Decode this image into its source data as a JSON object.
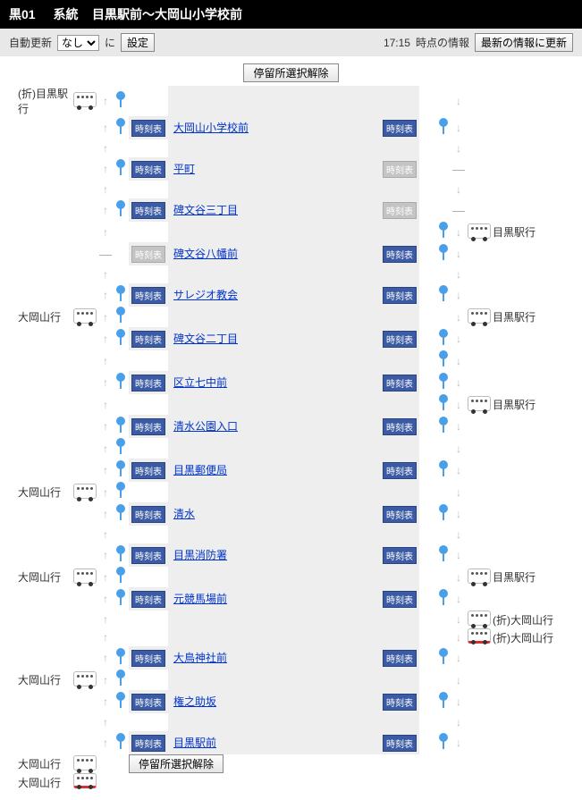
{
  "header": {
    "route_id": "黒01",
    "route_label": "系統",
    "route_name": "目黒駅前～大岡山小学校前"
  },
  "controls": {
    "auto_update_label": "自動更新",
    "auto_update_value": "なし",
    "ni_label": "に",
    "set_button": "設定",
    "time": "17:15",
    "time_info_label": "時点の情報",
    "refresh_button": "最新の情報に更新"
  },
  "clear_selection_button": "停留所選択解除",
  "timetable_label": "時刻表",
  "stops": [
    {
      "name": "大岡山小学校前",
      "tt_left": true,
      "tt_right": true,
      "stop_left": true,
      "stop_right": true,
      "left_dash": false,
      "right_term": false
    },
    {
      "name": "平町",
      "tt_left": true,
      "tt_right": false,
      "stop_left": true,
      "stop_right": false,
      "left_dash": false,
      "right_term": true
    },
    {
      "name": "碑文谷三丁目",
      "tt_left": true,
      "tt_right": false,
      "stop_left": true,
      "stop_right": false,
      "left_dash": false,
      "right_term": true
    },
    {
      "name": "碑文谷八幡前",
      "tt_left": false,
      "tt_right": true,
      "stop_left": false,
      "stop_right": true,
      "left_dash": true,
      "right_term": false
    },
    {
      "name": "サレジオ教会",
      "tt_left": true,
      "tt_right": true,
      "stop_left": true,
      "stop_right": true,
      "left_dash": false,
      "right_term": false
    },
    {
      "name": "碑文谷二丁目",
      "tt_left": true,
      "tt_right": true,
      "stop_left": true,
      "stop_right": true,
      "left_dash": false,
      "right_term": false
    },
    {
      "name": "区立七中前",
      "tt_left": true,
      "tt_right": true,
      "stop_left": true,
      "stop_right": true,
      "left_dash": false,
      "right_term": false
    },
    {
      "name": "清水公園入口",
      "tt_left": true,
      "tt_right": true,
      "stop_left": true,
      "stop_right": true,
      "left_dash": false,
      "right_term": false
    },
    {
      "name": "目黒郵便局",
      "tt_left": true,
      "tt_right": true,
      "stop_left": true,
      "stop_right": true,
      "left_dash": false,
      "right_term": false
    },
    {
      "name": "清水",
      "tt_left": true,
      "tt_right": true,
      "stop_left": true,
      "stop_right": true,
      "left_dash": false,
      "right_term": false
    },
    {
      "name": "目黒消防署",
      "tt_left": true,
      "tt_right": true,
      "stop_left": true,
      "stop_right": true,
      "left_dash": false,
      "right_term": false
    },
    {
      "name": "元競馬場前",
      "tt_left": true,
      "tt_right": true,
      "stop_left": true,
      "stop_right": true,
      "left_dash": false,
      "right_term": false
    },
    {
      "name": "大鳥神社前",
      "tt_left": true,
      "tt_right": true,
      "stop_left": true,
      "stop_right": true,
      "left_dash": false,
      "right_term": false
    },
    {
      "name": "権之助坂",
      "tt_left": true,
      "tt_right": true,
      "stop_left": true,
      "stop_right": true,
      "left_dash": false,
      "right_term": false
    },
    {
      "name": "目黒駅前",
      "tt_left": true,
      "tt_right": true,
      "stop_left": true,
      "stop_right": true,
      "left_dash": false,
      "right_term": false
    }
  ],
  "gaps": [
    {
      "left_bus": "white",
      "left_label": "(折)目黒駅行",
      "right_bus": null,
      "right_label": null,
      "right_bus2": null,
      "right_label2": null,
      "left_stop": true,
      "right_stop": false
    },
    {
      "left_bus": null,
      "left_label": null,
      "right_bus": null,
      "right_label": null,
      "right_bus2": null,
      "right_label2": null,
      "left_stop": false,
      "right_stop": false
    },
    {
      "left_bus": null,
      "left_label": null,
      "right_bus": null,
      "right_label": null,
      "right_bus2": null,
      "right_label2": null,
      "left_stop": false,
      "right_stop": false
    },
    {
      "left_bus": null,
      "left_label": null,
      "right_bus": "white",
      "right_label": "目黒駅行",
      "right_bus2": null,
      "right_label2": null,
      "left_stop": false,
      "right_stop": true
    },
    {
      "left_bus": null,
      "left_label": null,
      "right_bus": null,
      "right_label": null,
      "right_bus2": null,
      "right_label2": null,
      "left_stop": false,
      "right_stop": false
    },
    {
      "left_bus": "white",
      "left_label": "大岡山行",
      "right_bus": "white",
      "right_label": "目黒駅行",
      "right_bus2": null,
      "right_label2": null,
      "left_stop": true,
      "right_stop": false
    },
    {
      "left_bus": null,
      "left_label": null,
      "right_bus": null,
      "right_label": null,
      "right_bus2": null,
      "right_label2": null,
      "left_stop": false,
      "right_stop": true
    },
    {
      "left_bus": null,
      "left_label": null,
      "right_bus": "white",
      "right_label": "目黒駅行",
      "right_bus2": null,
      "right_label2": null,
      "left_stop": false,
      "right_stop": true
    },
    {
      "left_bus": null,
      "left_label": null,
      "right_bus": null,
      "right_label": null,
      "right_bus2": null,
      "right_label2": null,
      "left_stop": true,
      "right_stop": false
    },
    {
      "left_bus": "white",
      "left_label": "大岡山行",
      "right_bus": null,
      "right_label": null,
      "right_bus2": null,
      "right_label2": null,
      "left_stop": true,
      "right_stop": false
    },
    {
      "left_bus": null,
      "left_label": null,
      "right_bus": null,
      "right_label": null,
      "right_bus2": null,
      "right_label2": null,
      "left_stop": false,
      "right_stop": false
    },
    {
      "left_bus": "white",
      "left_label": "大岡山行",
      "right_bus": "white",
      "right_label": "目黒駅行",
      "right_bus2": null,
      "right_label2": null,
      "left_stop": true,
      "right_stop": false
    },
    {
      "left_bus": null,
      "left_label": null,
      "right_bus": "white",
      "right_label": "(折)大岡山行",
      "right_bus2": "red",
      "right_label2": "(折)大岡山行",
      "left_stop": false,
      "right_stop": false
    },
    {
      "left_bus": "white",
      "left_label": "大岡山行",
      "right_bus": null,
      "right_label": null,
      "right_bus2": null,
      "right_label2": null,
      "left_stop": true,
      "right_stop": false
    },
    {
      "left_bus": null,
      "left_label": null,
      "right_bus": null,
      "right_label": null,
      "right_bus2": null,
      "right_label2": null,
      "left_stop": false,
      "right_stop": false
    }
  ],
  "bottom": [
    {
      "left_bus": "white",
      "left_label": "大岡山行"
    },
    {
      "left_bus": "red",
      "left_label": "大岡山行"
    }
  ]
}
